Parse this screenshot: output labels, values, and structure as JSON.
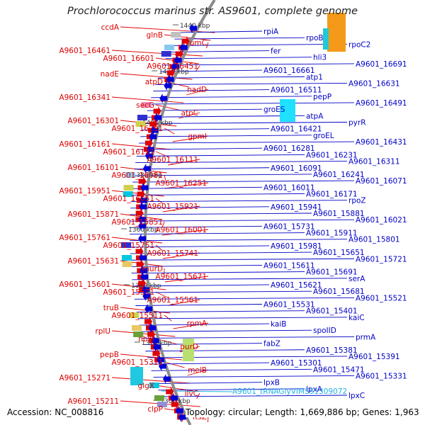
{
  "title": "Prochlorococcus marinus str. AS9601, complete genome",
  "footer": {
    "accession": "Accession: NC_008816",
    "summary": "Topology: circular; Length: 1,669,886 bp; Genes: 1,963"
  },
  "colors": {
    "left_labels": "#e00000",
    "right_labels": "#0000c8",
    "rna_label": "#20b0e8",
    "backbone": "#8c8c8c",
    "forward_strand": "#e00000",
    "reverse_strand": "#0000d8"
  },
  "kbp_markers": [
    {
      "text": "1440 kbp",
      "anchor": "right"
    },
    {
      "text": "1420 kbp",
      "anchor": "right"
    },
    {
      "text": "1400 kbp",
      "anchor": "right"
    },
    {
      "text": "1380 kbp",
      "anchor": "right"
    },
    {
      "text": "1360 kbp",
      "anchor": "right"
    },
    {
      "text": "1340 kbp",
      "anchor": "right"
    },
    {
      "text": "1320 kbp",
      "anchor": "right"
    },
    {
      "text": "1300 kbp",
      "anchor": "right"
    }
  ],
  "left_genes": [
    "ccdA",
    "glnB",
    "fumC",
    "A9601_16461",
    "A9601_16601",
    "A9601_16451",
    "nadE",
    "atpD",
    "nadD",
    "A9601_16341",
    "secG",
    "atpC",
    "A9601_16301",
    "A9601_16291",
    "gpmI",
    "A9601_16161",
    "A9601_16121",
    "A9601_16111",
    "A9601_16101",
    "A9601_16081",
    "A9601_16251",
    "A9601_15951",
    "A9601_16051",
    "A9601_15921",
    "A9601_15871",
    "A9601_15851",
    "A9601_16001",
    "A9601_15761",
    "A9601_15751",
    "A9601_15741",
    "A9601_15631",
    "murD",
    "A9601_15671",
    "A9601_15601",
    "A9601_15571",
    "A9601_15561",
    "truB",
    "A9601_15511",
    "rpmA",
    "rplU",
    "nblS",
    "purD",
    "pepB",
    "A9601_15311",
    "melB",
    "A9601_15271",
    "glgX",
    "ilvC",
    "A9601_15211",
    "clpP",
    "ftsZ"
  ],
  "right_genes": [
    "rpiA",
    "rpoB",
    "rpoC2",
    "fer",
    "hli3",
    "A9601_16691",
    "A9601_16661",
    "atp1",
    "A9601_16631",
    "A9601_16511",
    "pepP",
    "A9601_16491",
    "groES",
    "atpA",
    "pyrR",
    "A9601_16421",
    "groEL",
    "A9601_16431",
    "A9601_16281",
    "A9601_16231",
    "A9601_16311",
    "A9601_16091",
    "A9601_16241",
    "A9601_16071",
    "A9601_16011",
    "A9601_16171",
    "rpoZ",
    "A9601_15941",
    "A9601_15881",
    "A9601_16021",
    "A9601_15731",
    "A9601_15911",
    "A9601_15801",
    "A9601_15981",
    "A9601_15651",
    "A9601_15721",
    "A9601_15611",
    "A9601_15691",
    "serA",
    "A9601_15621",
    "A9601_15681",
    "A9601_15521",
    "A9601_15531",
    "A9601_15401",
    "kaiC",
    "kaiB",
    "spoIID",
    "prmA",
    "fabZ",
    "A9601_15381",
    "A9601_15391",
    "A9601_15301",
    "A9601_15471",
    "A9601_15331",
    "lpxB",
    "lpxA",
    "lpxC"
  ],
  "rna_gene": "A9601_tRNAGlyVIMSS1309072"
}
